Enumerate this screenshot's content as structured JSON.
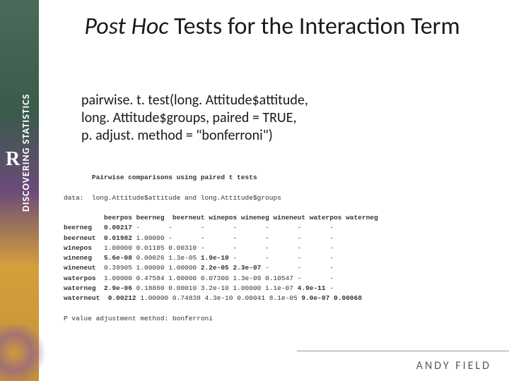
{
  "sidebar": {
    "line1": "DISCOVERING STATISTICS",
    "line2": "USING",
    "r": "R"
  },
  "title": {
    "italic_part": "Post Hoc",
    "rest": " Tests for the Interaction Term"
  },
  "code": {
    "line1": "pairwise. t. test(long. Attitude$attitude,",
    "line2": "long. Attitude$groups, paired = TRUE,",
    "line3": "p. adjust. method = \"bonferroni\")"
  },
  "output": {
    "header": "       Pairwise comparisons using paired t tests",
    "data_line": "data:  long.Attitude$attitude and long.Attitude$groups",
    "columns": "          beerpos beerneg  beerneut winepos wineneg wineneut waterpos waterneg",
    "rows": [
      {
        "label": "beerneg ",
        "cells": [
          "0.00217",
          "-      ",
          "-      ",
          "-      ",
          "-      ",
          "-      ",
          "-      ",
          "-"
        ]
      },
      {
        "label": "beerneut",
        "cells": [
          "0.01982",
          "1.00000",
          "-      ",
          "-      ",
          "-      ",
          "-      ",
          "-      ",
          "-"
        ]
      },
      {
        "label": "winepos ",
        "cells": [
          "1.00000",
          "0.01105",
          "0.00310",
          "-      ",
          "-      ",
          "-      ",
          "-      ",
          "-"
        ]
      },
      {
        "label": "wineneg ",
        "cells": [
          "5.6e-08",
          "0.00026",
          "1.3e-05",
          "1.9e-10",
          "-      ",
          "-      ",
          "-      ",
          "-"
        ]
      },
      {
        "label": "wineneut",
        "cells": [
          "0.39905",
          "1.00000",
          "1.00000",
          "2.2e-05",
          "2.3e-07",
          "-      ",
          "-      ",
          "-"
        ]
      },
      {
        "label": "waterpos",
        "cells": [
          "1.00000",
          "0.47584",
          "1.00000",
          "0.07300",
          "1.3e-09",
          "0.10547",
          "-      ",
          "-"
        ]
      },
      {
        "label": "waterneg",
        "cells": [
          "2.9e-06",
          "0.18860",
          "0.00010",
          "3.2e-10",
          "1.00000",
          "1.1e-07",
          "4.9e-11",
          "-"
        ]
      },
      {
        "label": "waterneut",
        "cells": [
          "0.00212",
          "1.00000",
          "0.74838",
          "4.3e-10",
          "0.00041",
          "8.1e-05",
          "9.0e-07",
          "0.00068"
        ]
      }
    ],
    "bold_cells": [
      [
        0,
        0
      ],
      [
        1,
        0
      ],
      [
        3,
        0
      ],
      [
        3,
        3
      ],
      [
        4,
        3
      ],
      [
        4,
        4
      ],
      [
        6,
        0
      ],
      [
        6,
        6
      ],
      [
        7,
        0
      ],
      [
        7,
        6
      ],
      [
        7,
        7
      ]
    ],
    "footer": "P value adjustment method: bonferroni"
  },
  "footer_text": "ANDY FIELD",
  "colors": {
    "text": "#1a1a1a",
    "mono": "#333333",
    "footer": "#5a5a5a"
  }
}
